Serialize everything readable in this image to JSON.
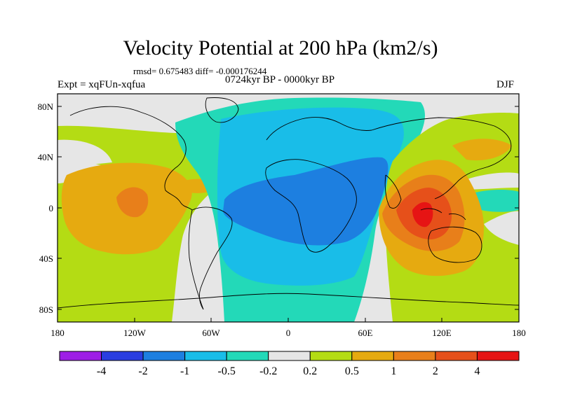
{
  "header": {
    "title": "Velocity Potential at 200 hPa (km2/s)",
    "stats": "rmsd= 0.675483 diff= -0.000176244",
    "expt": "Expt = xqFUn-xqfua",
    "period": "0724kyr BP - 0000kyr BP",
    "season": "DJF"
  },
  "axes": {
    "lat_ticks": [
      "80N",
      "40N",
      "0",
      "40S",
      "80S"
    ],
    "lon_ticks": [
      "180",
      "120W",
      "60W",
      "0",
      "60E",
      "120E",
      "180"
    ]
  },
  "legend": {
    "colors": [
      "#9e1ee6",
      "#2a3ee0",
      "#1d7fe0",
      "#19bde8",
      "#23d9b8",
      "#e6e6e6",
      "#b4dc14",
      "#e6aa10",
      "#e87f1a",
      "#e6501a",
      "#e61414"
    ],
    "labels": [
      "-4",
      "-2",
      "-1",
      "-0.5",
      "-0.2",
      "0.2",
      "0.5",
      "1",
      "2",
      "4"
    ]
  },
  "chart_data": {
    "type": "heatmap",
    "title": "Velocity Potential at 200 hPa (km2/s)",
    "xlabel": "",
    "ylabel": "",
    "xlim": [
      -180,
      180
    ],
    "ylim": [
      -90,
      90
    ],
    "contour_levels": [
      -4,
      -2,
      -1,
      -0.5,
      -0.2,
      0.2,
      0.5,
      1,
      2,
      4
    ],
    "features": [
      {
        "region": "Africa / Atlantic / Europe",
        "sign": "negative",
        "min_level": -2
      },
      {
        "region": "Maritime Continent / Indian Ocean",
        "sign": "positive",
        "max_level": 4
      },
      {
        "region": "Eastern Pacific",
        "sign": "positive",
        "max_level": 2
      }
    ]
  }
}
